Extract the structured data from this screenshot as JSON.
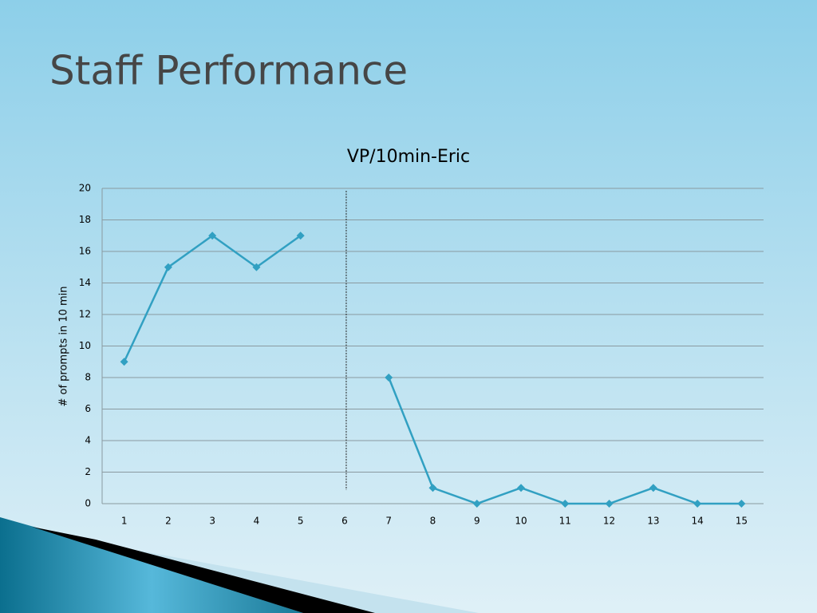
{
  "slide_title": "Staff Performance",
  "chart_data": {
    "type": "line",
    "title": "VP/10min-Eric",
    "y_label": "# of prompts in 10 min",
    "categories": [
      "1",
      "2",
      "3",
      "4",
      "5",
      "6",
      "7",
      "8",
      "9",
      "10",
      "11",
      "12",
      "13",
      "14",
      "15"
    ],
    "series": [
      {
        "color": "#31a0c2",
        "values": [
          9,
          15,
          17,
          15,
          17,
          null,
          8,
          1,
          0,
          1,
          0,
          0,
          1,
          0,
          0
        ]
      }
    ],
    "ylim": [
      0,
      20
    ],
    "yticks": [
      0,
      2,
      4,
      6,
      8,
      10,
      12,
      14,
      16,
      18,
      20
    ],
    "grid": true
  }
}
